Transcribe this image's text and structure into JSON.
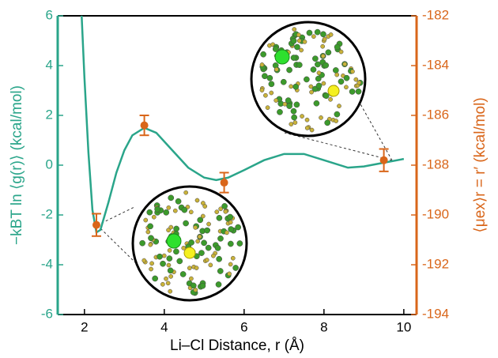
{
  "chart_data": {
    "type": "line",
    "xlabel": "Li–Cl Distance, r (Å)",
    "ylabel": "−kBT ln ⟨g(r)⟩ (kcal/mol)",
    "y2label": "⟨μex⟩r = r′ (kcal/mol)",
    "xlim": [
      1.33,
      10.32
    ],
    "xticks": [
      2,
      4,
      6,
      8,
      10
    ],
    "ylim": [
      -6,
      6
    ],
    "yticks": [
      -6,
      -4,
      -2,
      0,
      2,
      4,
      6
    ],
    "y2lim": [
      -194,
      -182
    ],
    "y2ticks": [
      -194,
      -192,
      -190,
      -188,
      -186,
      -184,
      -182
    ],
    "series": [
      {
        "color": "#2aa58a",
        "x": [
          1.93,
          2.0,
          2.1,
          2.2,
          2.3,
          2.4,
          2.6,
          2.8,
          3.0,
          3.2,
          3.5,
          3.8,
          4.2,
          4.6,
          5.0,
          5.3,
          5.6,
          6.0,
          6.5,
          7.0,
          7.5,
          8.0,
          8.6,
          9.0,
          9.5,
          10.0
        ],
        "values": [
          6,
          3.5,
          0.5,
          -1.8,
          -2.7,
          -2.6,
          -1.5,
          -0.3,
          0.6,
          1.2,
          1.5,
          1.3,
          0.6,
          -0.1,
          -0.5,
          -0.6,
          -0.5,
          -0.2,
          0.2,
          0.45,
          0.45,
          0.2,
          -0.1,
          -0.05,
          0.1,
          0.25
        ]
      },
      {
        "type": "errorbar",
        "axis": "y2",
        "color": "#d9661a",
        "x": [
          2.3,
          3.5,
          5.5,
          9.5
        ],
        "values": [
          -190.4,
          -186.4,
          -188.7,
          -187.8
        ],
        "errors": [
          0.45,
          0.4,
          0.4,
          0.45
        ]
      }
    ]
  }
}
